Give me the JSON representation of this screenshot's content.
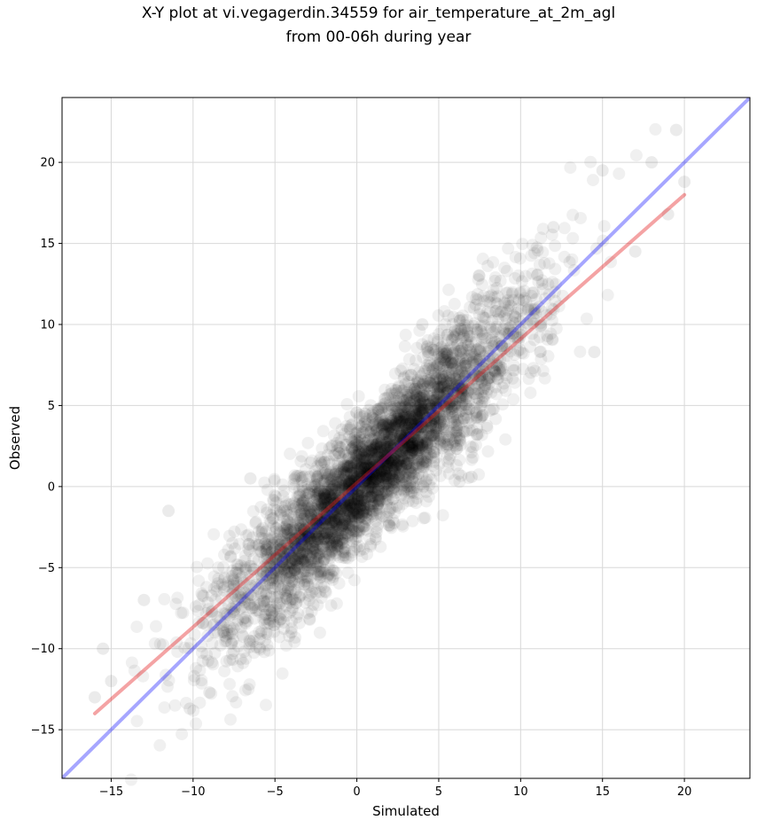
{
  "chart_data": {
    "type": "scatter",
    "title_line1": "X-Y plot at vi.vegagerdin.34559 for air_temperature_at_2m_agl",
    "title_line2": "from 00-06h during year",
    "xlabel": "Simulated",
    "ylabel": "Observed",
    "xlim": [
      -18,
      24
    ],
    "ylim": [
      -18,
      24
    ],
    "x_ticks": [
      -15,
      -10,
      -5,
      0,
      5,
      10,
      15,
      20
    ],
    "y_ticks": [
      -15,
      -10,
      -5,
      0,
      5,
      10,
      15,
      20
    ],
    "x_tick_labels": [
      "−15",
      "−10",
      "−5",
      "0",
      "5",
      "10",
      "15",
      "20"
    ],
    "y_tick_labels": [
      "−15",
      "−10",
      "−5",
      "0",
      "5",
      "10",
      "15",
      "20"
    ],
    "grid": true,
    "point_color": "#000000",
    "point_opacity": 0.06,
    "point_cloud": {
      "x_range": [
        -16,
        20
      ],
      "center_x": 1,
      "relationship": "observed ≈ simulated",
      "spread_sd": 1.8
    },
    "points_sample": [
      {
        "x": -16,
        "y": -13
      },
      {
        "x": -15.5,
        "y": -10
      },
      {
        "x": -15,
        "y": -12
      },
      {
        "x": -13,
        "y": -7
      },
      {
        "x": -11.5,
        "y": -1.5
      },
      {
        "x": -10.2,
        "y": -13.7
      },
      {
        "x": -9,
        "y": -12.7
      },
      {
        "x": -6.5,
        "y": 0.5
      },
      {
        "x": -4,
        "y": -9
      },
      {
        "x": 0.5,
        "y": 4.5
      },
      {
        "x": 4,
        "y": 10
      },
      {
        "x": 7,
        "y": 0.6
      },
      {
        "x": 12,
        "y": 16
      },
      {
        "x": 15,
        "y": 19.5
      },
      {
        "x": 14.5,
        "y": 8.3
      },
      {
        "x": 18,
        "y": 20
      },
      {
        "x": 19.5,
        "y": 22
      },
      {
        "x": 20,
        "y": 18.8
      },
      {
        "x": 19,
        "y": 16.8
      },
      {
        "x": 17,
        "y": 14.5
      }
    ],
    "lines": [
      {
        "role": "identity",
        "color": "#0000ff",
        "opacity": 0.35,
        "x": [
          -18,
          24
        ],
        "y": [
          -18,
          24
        ]
      },
      {
        "role": "fit",
        "color": "#e31a1c",
        "opacity": 0.4,
        "x": [
          -16,
          20
        ],
        "y": [
          -14,
          18
        ]
      }
    ]
  }
}
